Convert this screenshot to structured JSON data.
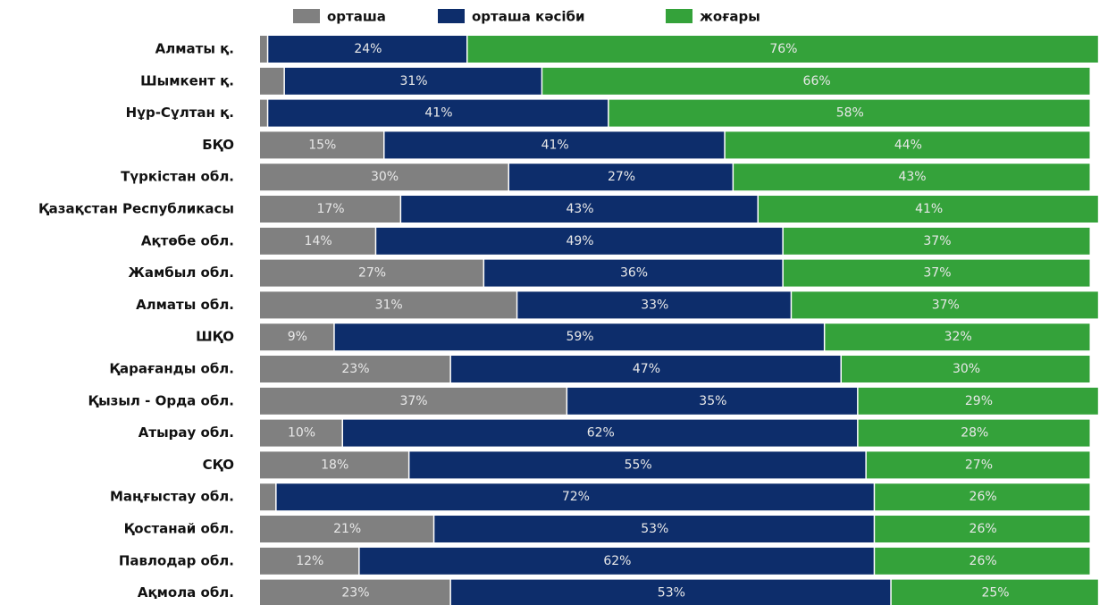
{
  "chart_data": {
    "type": "stacked_barh",
    "categories": [
      "Алматы қ.",
      "Шымкент қ.",
      "Нұр-Сұлтан қ.",
      "БҚО",
      "Түркістан обл.",
      "Қазақстан Республикасы",
      "Ақтөбе обл.",
      "Жамбыл обл.",
      "Алматы обл.",
      "ШҚО",
      "Қарағанды обл.",
      "Қызыл - Орда обл.",
      "Атырау обл.",
      "СҚО",
      "Маңғыстау обл.",
      "Қостанай обл.",
      "Павлодар обл.",
      "Ақмола обл."
    ],
    "series": [
      {
        "name": "орташа",
        "color": "#808080",
        "values": [
          1,
          3,
          1,
          15,
          30,
          17,
          14,
          27,
          31,
          9,
          23,
          37,
          10,
          18,
          2,
          21,
          12,
          23
        ],
        "value_labels": [
          null,
          null,
          null,
          "15%",
          "30%",
          "17%",
          "14%",
          "27%",
          "31%",
          "9%",
          "23%",
          "37%",
          "10%",
          "18%",
          null,
          "21%",
          "12%",
          "23%"
        ]
      },
      {
        "name": "орташа кәсіби",
        "color": "#0d2d6b",
        "values": [
          24,
          31,
          41,
          41,
          27,
          43,
          49,
          36,
          33,
          59,
          47,
          35,
          62,
          55,
          72,
          53,
          62,
          53
        ],
        "value_labels": [
          "24%",
          "31%",
          "41%",
          "41%",
          "27%",
          "43%",
          "49%",
          "36%",
          "33%",
          "59%",
          "47%",
          "35%",
          "62%",
          "55%",
          "72%",
          "53%",
          "62%",
          "53%"
        ]
      },
      {
        "name": "жоғары",
        "color": "#34a23a",
        "values": [
          76,
          66,
          58,
          44,
          43,
          41,
          37,
          37,
          37,
          32,
          30,
          29,
          28,
          27,
          26,
          26,
          26,
          25
        ],
        "value_labels": [
          "76%",
          "66%",
          "58%",
          "44%",
          "43%",
          "41%",
          "37%",
          "37%",
          "37%",
          "32%",
          "30%",
          "29%",
          "28%",
          "27%",
          "26%",
          "26%",
          "26%",
          "25%"
        ]
      }
    ],
    "xlim": [
      0,
      100
    ]
  }
}
